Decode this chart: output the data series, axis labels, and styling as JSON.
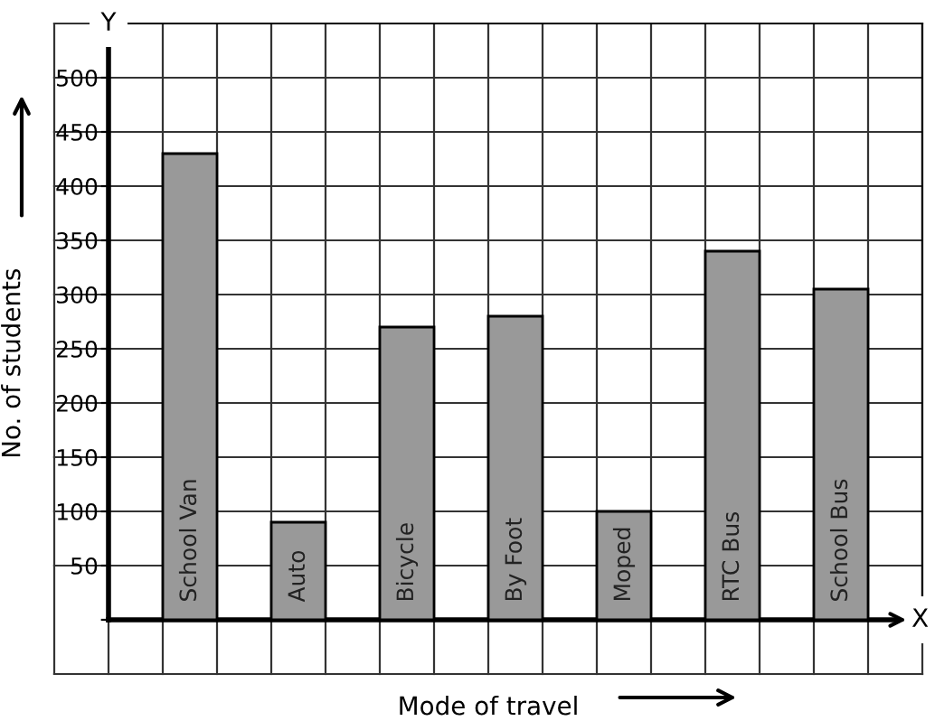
{
  "chart_data": {
    "type": "bar",
    "xlabel": "Mode of travel",
    "ylabel": "No. of students",
    "annotations": [
      "Y",
      "X"
    ],
    "categories": [
      "School Van",
      "Auto",
      "Bicycle",
      "By Foot",
      "Moped",
      "RTC Bus",
      "School Bus"
    ],
    "values": [
      430,
      90,
      270,
      280,
      100,
      340,
      305
    ],
    "color": "#999999",
    "ylim": [
      0,
      550
    ],
    "yticks": [
      {
        "value": 0,
        "label": null
      },
      50,
      100,
      150,
      200,
      250,
      300,
      350,
      400,
      450,
      500,
      {
        "value": 550,
        "label": null
      }
    ],
    "grid": true,
    "tick_labels": "y"
  }
}
